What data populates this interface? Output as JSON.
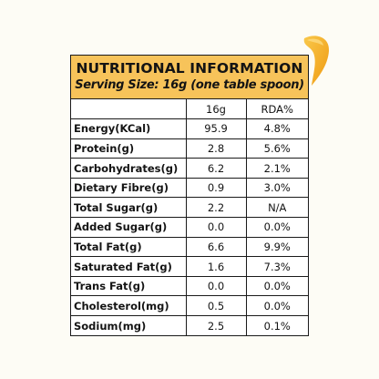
{
  "header": {
    "title": "NUTRITIONAL INFORMATION",
    "subtitle": "Serving Size: 16g (one table spoon)"
  },
  "columns": [
    "",
    "16g",
    "RDA%"
  ],
  "rows": [
    {
      "nutrient": "Energy(KCal)",
      "amount": "95.9",
      "rda": "4.8%"
    },
    {
      "nutrient": "Protein(g)",
      "amount": "2.8",
      "rda": "5.6%"
    },
    {
      "nutrient": "Carbohydrates(g)",
      "amount": "6.2",
      "rda": "2.1%"
    },
    {
      "nutrient": "Dietary Fibre(g)",
      "amount": "0.9",
      "rda": "3.0%"
    },
    {
      "nutrient": "Total Sugar(g)",
      "amount": "2.2",
      "rda": "N/A"
    },
    {
      "nutrient": "Added Sugar(g)",
      "amount": "0.0",
      "rda": "0.0%"
    },
    {
      "nutrient": "Total Fat(g)",
      "amount": "6.6",
      "rda": "9.9%"
    },
    {
      "nutrient": "Saturated Fat(g)",
      "amount": "1.6",
      "rda": "7.3%"
    },
    {
      "nutrient": "Trans Fat(g)",
      "amount": "0.0",
      "rda": "0.0%"
    },
    {
      "nutrient": "Cholesterol(mg)",
      "amount": "0.5",
      "rda": "0.0%"
    },
    {
      "nutrient": "Sodium(mg)",
      "amount": "2.5",
      "rda": "0.1%"
    }
  ],
  "colors": {
    "header_bg": "#f7c35a",
    "drop_accent": "#f4a623",
    "page_bg": "#fdfcf5"
  }
}
